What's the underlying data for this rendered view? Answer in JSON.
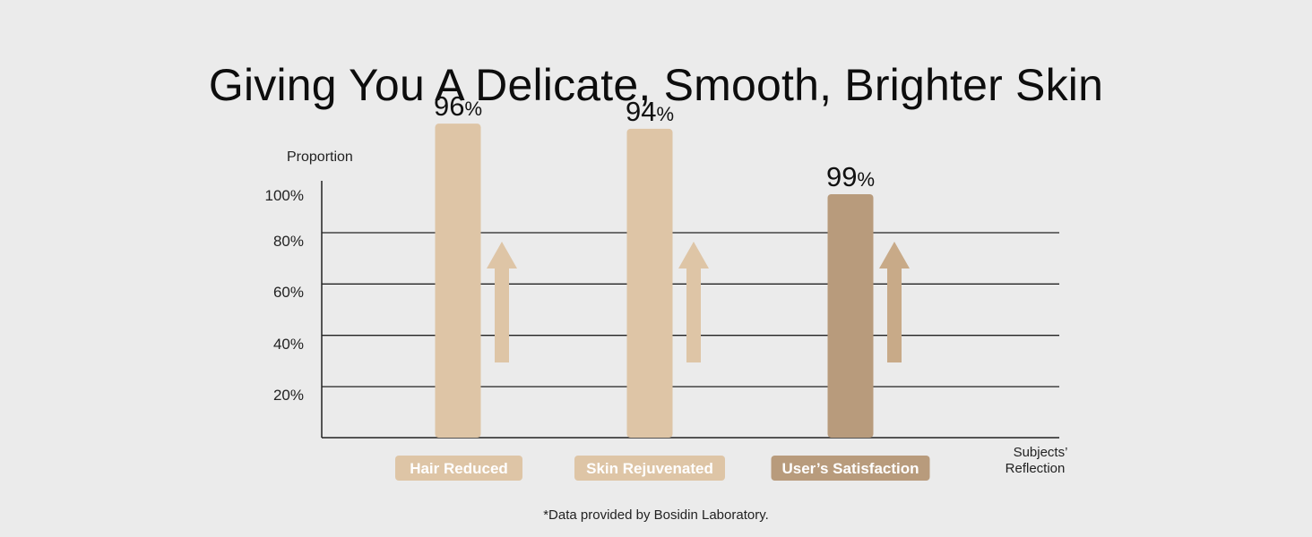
{
  "title": "Giving You A Delicate, Smooth, Brighter Skin",
  "footnote": "*Data provided by Bosidin Laboratory.",
  "colors": {
    "background": "#ebebeb",
    "light_bar": "#dec5a6",
    "dark_bar": "#b89b7c",
    "label_text": "#ffffff"
  },
  "chart_data": {
    "type": "bar",
    "ylabel": "Proportion",
    "xlabel": "Subjects’\nReflection",
    "categories": [
      "Hair Reduced",
      "Skin Rejuvenated",
      "User’s Satisfaction"
    ],
    "values": [
      96,
      94,
      99
    ],
    "value_labels": [
      "96",
      "94",
      "99"
    ],
    "value_suffix": "%",
    "yticks": [
      "20%",
      "40%",
      "60%",
      "80%",
      "100%"
    ],
    "ylim": [
      0,
      100
    ],
    "grid": true,
    "bar_colors": [
      "#dec5a6",
      "#dec5a6",
      "#b89b7c"
    ],
    "arrow_colors": [
      "#dec5a6",
      "#dec5a6",
      "#c8aa88"
    ],
    "arrows": "up"
  }
}
